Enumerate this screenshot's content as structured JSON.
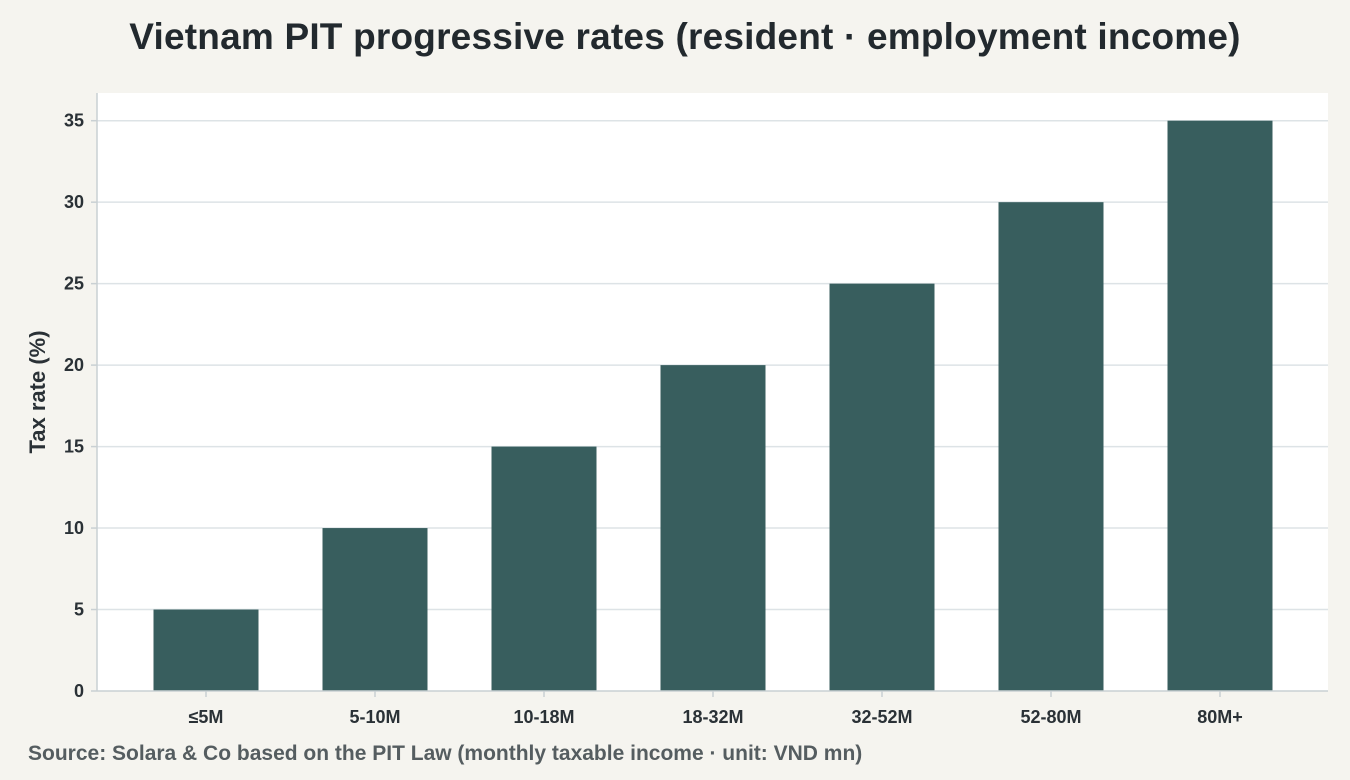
{
  "title": "Vietnam PIT progressive rates (resident · employment income)",
  "source": "Source: Solara & Co based on the PIT Law (monthly taxable income · unit: VND mn)",
  "colors": {
    "bar": "#385e5e",
    "plot_background": "#ffffff",
    "page_background": "#f5f4ef",
    "grid": "#dde3e6"
  },
  "chart_data": {
    "type": "bar",
    "categories": [
      "≤5M",
      "5-10M",
      "10-18M",
      "18-32M",
      "32-52M",
      "52-80M",
      "80M+"
    ],
    "values": [
      5,
      10,
      15,
      20,
      25,
      30,
      35
    ],
    "xlabel": "",
    "ylabel": "Tax rate (%)",
    "ylim": [
      0,
      36.7
    ],
    "yticks": [
      0,
      5,
      10,
      15,
      20,
      25,
      30,
      35
    ],
    "grid": true,
    "legend": "none"
  }
}
